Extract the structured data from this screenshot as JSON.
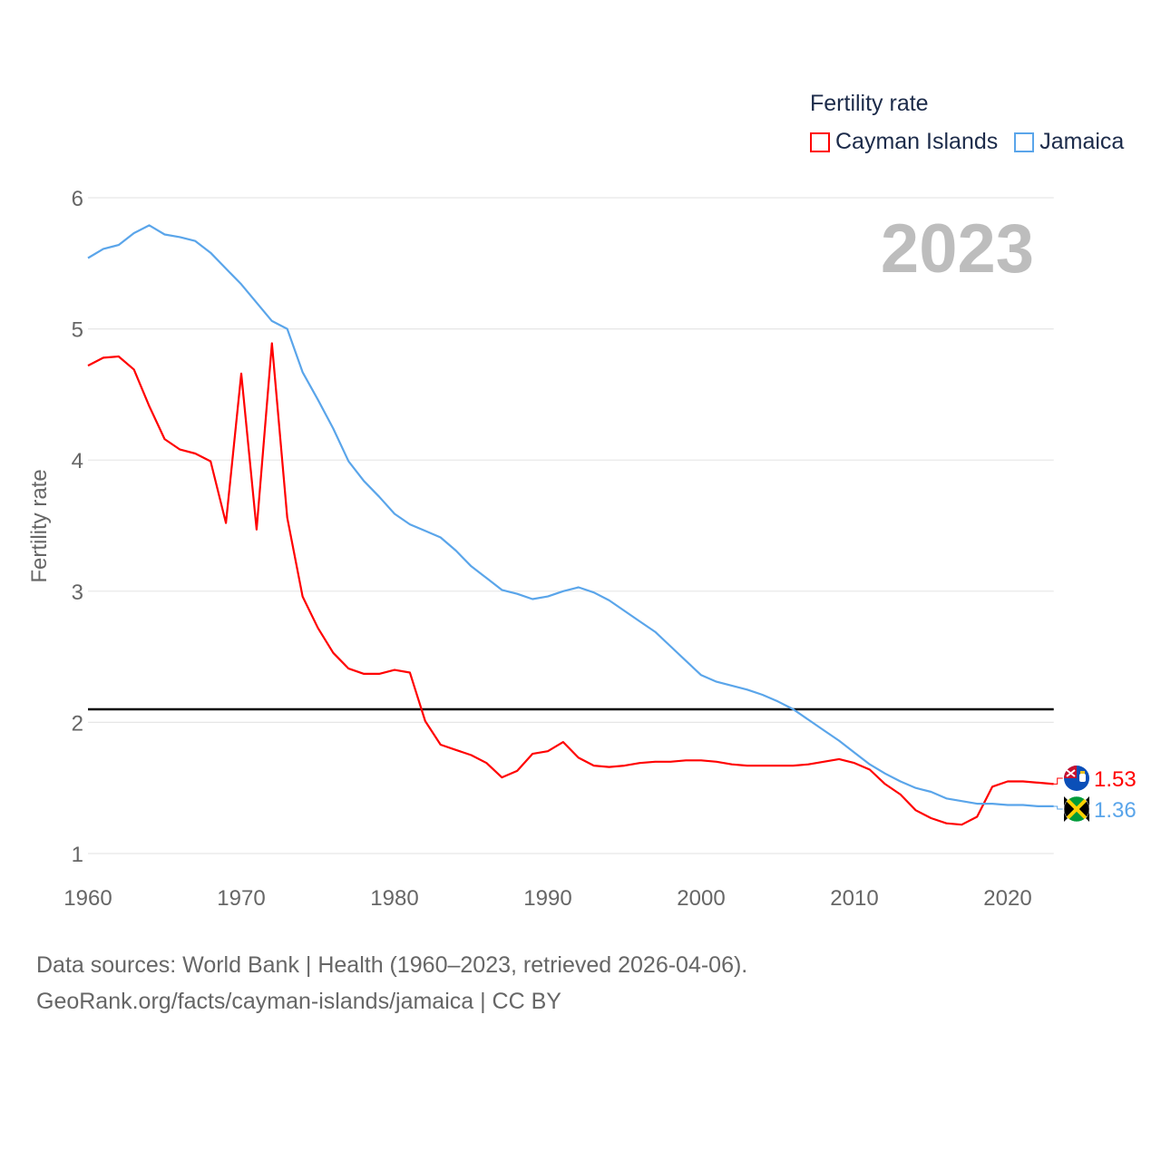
{
  "legend": {
    "title": "Fertility rate",
    "items": [
      {
        "label": "Cayman Islands",
        "color": "#ff0000"
      },
      {
        "label": "Jamaica",
        "color": "#5aa5ea"
      }
    ]
  },
  "source": {
    "line1": "Data sources: World Bank | Health (1960–2023, retrieved 2026-04-06).",
    "line2": "GeoRank.org/facts/cayman-islands/jamaica | CC BY"
  },
  "chart_data": {
    "type": "line",
    "year_label": "2023",
    "ylabel": "Fertility rate",
    "xlabel": "",
    "xlim": [
      1960,
      2023
    ],
    "ylim": [
      1,
      6
    ],
    "xticks": [
      1960,
      1970,
      1980,
      1990,
      2000,
      2010,
      2020
    ],
    "yticks": [
      1,
      2,
      3,
      4,
      5,
      6
    ],
    "grid": true,
    "legend_position": "top-right",
    "reference_line": 2.1,
    "x_start": 1960,
    "series": [
      {
        "name": "Cayman Islands",
        "color": "#ff0000",
        "end_label": "1.53",
        "values": [
          4.72,
          4.78,
          4.79,
          4.69,
          4.41,
          4.16,
          4.08,
          4.05,
          3.99,
          3.52,
          4.66,
          3.47,
          4.89,
          3.56,
          2.96,
          2.72,
          2.53,
          2.41,
          2.37,
          2.37,
          2.4,
          2.38,
          2.01,
          1.83,
          1.79,
          1.75,
          1.69,
          1.58,
          1.63,
          1.76,
          1.78,
          1.85,
          1.73,
          1.67,
          1.66,
          1.67,
          1.69,
          1.7,
          1.7,
          1.71,
          1.71,
          1.7,
          1.68,
          1.67,
          1.67,
          1.67,
          1.67,
          1.68,
          1.7,
          1.72,
          1.69,
          1.64,
          1.53,
          1.45,
          1.33,
          1.27,
          1.23,
          1.22,
          1.28,
          1.51,
          1.55,
          1.55,
          1.54,
          1.53
        ]
      },
      {
        "name": "Jamaica",
        "color": "#5aa5ea",
        "end_label": "1.36",
        "values": [
          5.54,
          5.61,
          5.64,
          5.73,
          5.79,
          5.72,
          5.7,
          5.67,
          5.58,
          5.46,
          5.34,
          5.2,
          5.06,
          5.0,
          4.67,
          4.46,
          4.24,
          3.99,
          3.84,
          3.72,
          3.59,
          3.51,
          3.46,
          3.41,
          3.31,
          3.19,
          3.1,
          3.01,
          2.98,
          2.94,
          2.96,
          3.0,
          3.03,
          2.99,
          2.93,
          2.85,
          2.77,
          2.69,
          2.58,
          2.47,
          2.36,
          2.31,
          2.28,
          2.25,
          2.21,
          2.16,
          2.1,
          2.02,
          1.94,
          1.86,
          1.77,
          1.68,
          1.61,
          1.55,
          1.5,
          1.47,
          1.42,
          1.4,
          1.38,
          1.38,
          1.37,
          1.37,
          1.36,
          1.36
        ]
      }
    ]
  }
}
